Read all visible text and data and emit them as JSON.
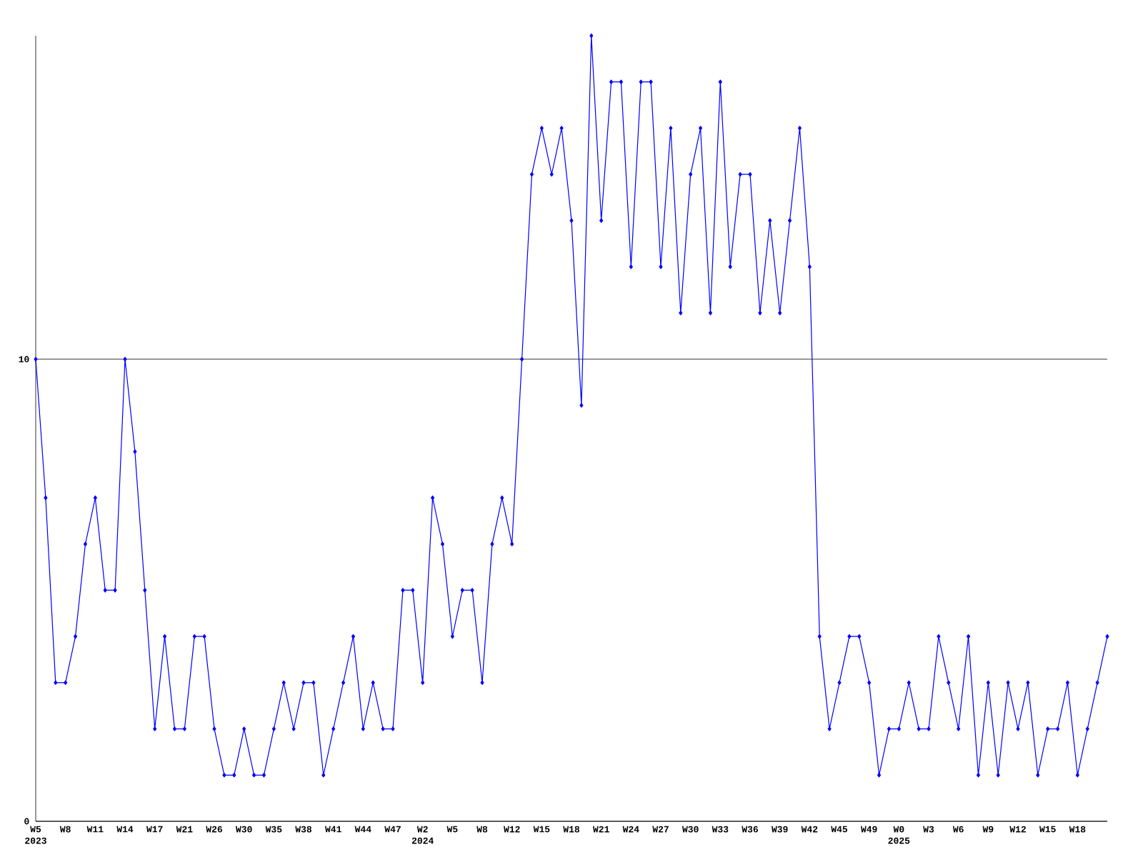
{
  "chart_data": {
    "type": "line",
    "categories": [
      "W5",
      null,
      null,
      "W8",
      null,
      null,
      "W11",
      null,
      null,
      "W14",
      null,
      null,
      "W17",
      null,
      null,
      "W21",
      null,
      null,
      "W26",
      null,
      null,
      "W30",
      null,
      null,
      "W35",
      null,
      null,
      "W38",
      null,
      null,
      "W41",
      null,
      null,
      "W44",
      null,
      null,
      "W47",
      null,
      null,
      "W2",
      null,
      null,
      "W5",
      null,
      null,
      "W8",
      null,
      null,
      "W12",
      null,
      null,
      "W15",
      null,
      null,
      "W18",
      null,
      null,
      "W21",
      null,
      null,
      "W24",
      null,
      null,
      "W27",
      null,
      null,
      "W30",
      null,
      null,
      "W33",
      null,
      null,
      "W36",
      null,
      null,
      "W39",
      null,
      null,
      "W42",
      null,
      null,
      "W45",
      null,
      null,
      "W49",
      null,
      null,
      "W0",
      null,
      null,
      "W3",
      null,
      null,
      "W6",
      null,
      null,
      "W9",
      null,
      null,
      "W12",
      null,
      null,
      "W15",
      null,
      null,
      "W18",
      null,
      null,
      null
    ],
    "series": [
      {
        "color": "#0000ff",
        "values": [
          10,
          7,
          3,
          3,
          4,
          6,
          7,
          5,
          5,
          10,
          8,
          5,
          2,
          4,
          2,
          2,
          4,
          4,
          2,
          1,
          1,
          2,
          1,
          1,
          2,
          3,
          2,
          3,
          3,
          1,
          2,
          3,
          4,
          2,
          3,
          2,
          2,
          5,
          5,
          3,
          7,
          6,
          4,
          5,
          5,
          3,
          6,
          7,
          6,
          10,
          14,
          15,
          14,
          15,
          13,
          9,
          17,
          13,
          16,
          16,
          12,
          16,
          16,
          12,
          15,
          11,
          14,
          15,
          11,
          16,
          12,
          14,
          14,
          11,
          13,
          11,
          13,
          15,
          12,
          4,
          2,
          3,
          4,
          4,
          3,
          1,
          2,
          2,
          3,
          2,
          2,
          4,
          3,
          2,
          4,
          1,
          3,
          1,
          3,
          2,
          3,
          1,
          2,
          2,
          3,
          1,
          2,
          3,
          4
        ]
      }
    ],
    "ylim": [
      0,
      17
    ],
    "yticks": [
      0,
      10
    ],
    "grid": "y",
    "marker": "diamond",
    "line_style": "solid",
    "annotations": [
      "2023",
      "2024",
      "2025"
    ]
  }
}
